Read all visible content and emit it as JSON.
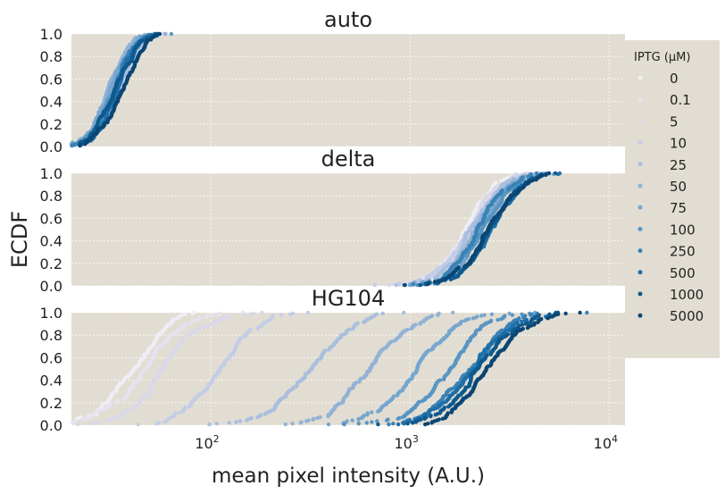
{
  "chart_data": {
    "type": "scatter",
    "subtype": "ecdf",
    "panels": [
      {
        "title": "auto"
      },
      {
        "title": "delta"
      },
      {
        "title": "HG104"
      }
    ],
    "xlabel": "mean pixel intensity (A.U.)",
    "ylabel": "ECDF",
    "xscale": "log",
    "xlim": [
      20,
      12000
    ],
    "ylim": [
      0,
      1
    ],
    "xticks": [
      {
        "value": 100,
        "base": "10",
        "exp": "2"
      },
      {
        "value": 1000,
        "base": "10",
        "exp": "3"
      },
      {
        "value": 10000,
        "base": "10",
        "exp": "4"
      }
    ],
    "yticks": [
      "0.0",
      "0.2",
      "0.4",
      "0.6",
      "0.8",
      "1.0"
    ],
    "grid": true,
    "legend": {
      "title": "IPTG (μM)",
      "placement": "right",
      "entries": [
        "0",
        "0.1",
        "5",
        "10",
        "25",
        "50",
        "75",
        "100",
        "250",
        "500",
        "1000",
        "5000"
      ],
      "colors": [
        "#efedf5",
        "#e5e2f0",
        "#d8d8ea",
        "#c3cde5",
        "#a9bfdd",
        "#92b2d6",
        "#77a6cf",
        "#5896c3",
        "#3a83b6",
        "#1f6fa8",
        "#0e5a8e",
        "#0a4674"
      ]
    },
    "medians": {
      "auto": [
        35,
        34,
        34,
        33,
        34,
        30,
        32,
        33,
        32,
        34,
        33,
        35
      ],
      "delta": [
        1900,
        1950,
        2000,
        2050,
        2050,
        2150,
        2200,
        2250,
        2300,
        2400,
        2450,
        2550
      ],
      "HG104": [
        42,
        48,
        62,
        110,
        320,
        620,
        1050,
        1500,
        1900,
        2100,
        2300,
        2600
      ]
    },
    "spread": {
      "auto": 0.09,
      "delta": 0.13,
      "HG104": 0.17
    }
  }
}
